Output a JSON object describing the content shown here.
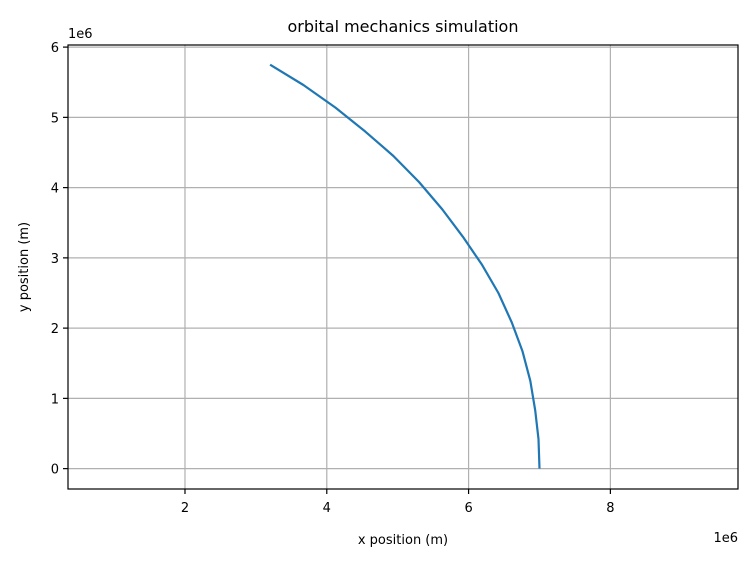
{
  "chart_data": {
    "type": "line",
    "title": "orbital mechanics simulation",
    "xlabel": "x position (m)",
    "ylabel": "y position (m)",
    "x_offset_label": "1e6",
    "y_offset_label": "1e6",
    "x_scale_factor": 1000000,
    "y_scale_factor": 1000000,
    "xlim": [
      350000,
      9800000
    ],
    "ylim": [
      -290000,
      6030000
    ],
    "x_ticks": [
      2,
      4,
      6,
      8
    ],
    "y_ticks": [
      0,
      1,
      2,
      3,
      4,
      5,
      6
    ],
    "grid": true,
    "line_color": "#1f77b4",
    "grid_color": "#b0b0b0",
    "series": [
      {
        "x": [
          7000000,
          6986000,
          6940000,
          6870000,
          6760000,
          6610000,
          6420000,
          6190000,
          5920000,
          5630000,
          5300000,
          4940000,
          4540000,
          4120000,
          3670000,
          3200000
        ],
        "y": [
          0,
          420000,
          830000,
          1250000,
          1670000,
          2080000,
          2500000,
          2900000,
          3300000,
          3690000,
          4080000,
          4450000,
          4800000,
          5140000,
          5460000,
          5750000
        ]
      }
    ]
  }
}
